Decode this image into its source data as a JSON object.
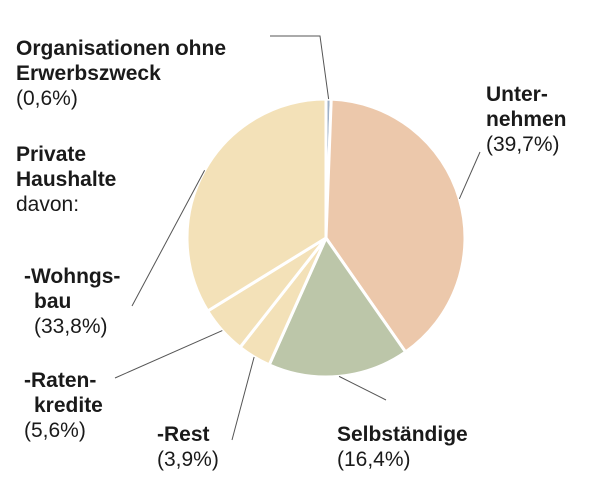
{
  "chart_data": {
    "type": "pie",
    "slices": [
      {
        "name": "Organisationen ohne Erwerbszweck",
        "value": 0.6,
        "value_label": "(0,6%)",
        "color": "#9fb0c6"
      },
      {
        "name": "Unternehmen",
        "value": 39.7,
        "value_label": "(39,7%)",
        "color": "#ecc8ab"
      },
      {
        "name": "Selbständige",
        "value": 16.4,
        "value_label": "(16,4%)",
        "color": "#bcc6a9"
      },
      {
        "name": "-Rest",
        "value": 3.9,
        "value_label": "(3,9%)",
        "color": "#f3e1b8"
      },
      {
        "name": "-Ratenkredite",
        "value": 5.6,
        "value_label": "(5,6%)",
        "color": "#f3e1b8"
      },
      {
        "name": "-Wohngsbau",
        "value": 33.8,
        "value_label": "(33,8%)",
        "color": "#f3e1b8"
      }
    ],
    "labels": {
      "org_line1": "Organisationen ohne",
      "org_line2": "Erwerbszweck",
      "org_pct": "(0,6%)",
      "unt_line1": "Unter-",
      "unt_line2": "nehmen",
      "unt_pct": "(39,7%)",
      "ph_line1": "Private",
      "ph_line2": "Haushalte",
      "ph_line3": "davon:",
      "wohn_line1": "-Wohngs-",
      "wohn_line2": "bau",
      "wohn_pct": "(33,8%)",
      "raten_line1": "-Raten-",
      "raten_line2": "kredite",
      "raten_pct": "(5,6%)",
      "rest_line1": "-Rest",
      "rest_pct": "(3,9%)",
      "selb_line1": "Selbständige",
      "selb_pct": "(16,4%)"
    },
    "colors": {
      "separator": "#ffffff",
      "leader": "#555555"
    }
  }
}
